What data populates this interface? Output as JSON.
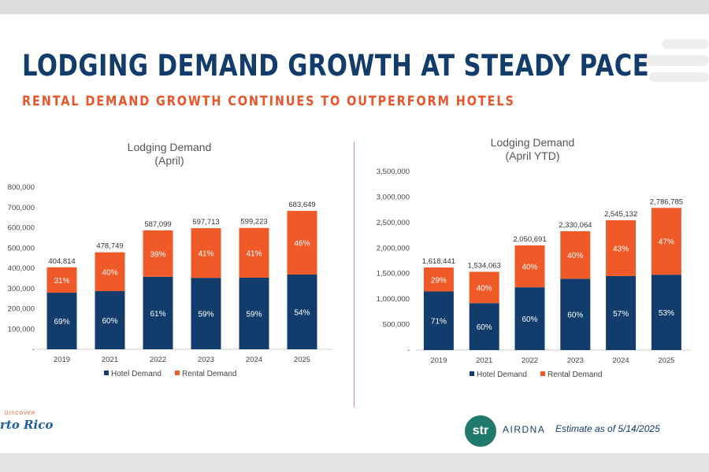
{
  "slide": {
    "title": "LODGING DEMAND GROWTH AT STEADY PACE",
    "subtitle": "RENTAL DEMAND GROWTH CONTINUES TO OUTPERFORM HOTELS",
    "estimate": "Estimate as of 5/14/2025",
    "logo_left_small": "DISCOVER",
    "logo_left_text": "rto Rico",
    "str_logo": "str",
    "airdna_logo": "AIRDNA"
  },
  "colors": {
    "hotel": "#123c6b",
    "rental": "#f05a28",
    "title": "#123c6b",
    "subtitle": "#e8552a"
  },
  "chart_data": [
    {
      "type": "bar",
      "stacked": true,
      "title": "Lodging Demand",
      "subtitle": "(April)",
      "categories": [
        "2019",
        "2021",
        "2022",
        "2023",
        "2024",
        "2025"
      ],
      "series": [
        {
          "name": "Hotel Demand",
          "values": [
            279322,
            287249,
            358130,
            352651,
            353542,
            369170
          ],
          "labels": [
            "69%",
            "60%",
            "61%",
            "59%",
            "59%",
            "54%"
          ]
        },
        {
          "name": "Rental Demand",
          "values": [
            125492,
            191500,
            228969,
            245062,
            245681,
            314479
          ],
          "labels": [
            "31%",
            "40%",
            "39%",
            "41%",
            "41%",
            "46%"
          ]
        }
      ],
      "totals": [
        "404,814",
        "478,749",
        "587,099",
        "597,713",
        "599,223",
        "683,649"
      ],
      "yticks": [
        "-",
        "100,000",
        "200,000",
        "300,000",
        "400,000",
        "500,000",
        "600,000",
        "700,000",
        "800,000"
      ],
      "ylim": [
        0,
        800000
      ],
      "legend": "bottom"
    },
    {
      "type": "bar",
      "stacked": true,
      "title": "Lodging Demand",
      "subtitle": "(April YTD)",
      "categories": [
        "2019",
        "2021",
        "2022",
        "2023",
        "2024",
        "2025"
      ],
      "series": [
        {
          "name": "Hotel Demand",
          "values": [
            1149093,
            920438,
            1230415,
            1398038,
            1450725,
            1477000
          ],
          "labels": [
            "71%",
            "60%",
            "60%",
            "60%",
            "57%",
            "53%"
          ]
        },
        {
          "name": "Rental Demand",
          "values": [
            469348,
            613625,
            820276,
            932026,
            1094407,
            1309785
          ],
          "labels": [
            "29%",
            "40%",
            "40%",
            "40%",
            "43%",
            "47%"
          ]
        }
      ],
      "totals": [
        "1,618,441",
        "1,534,063",
        "2,050,691",
        "2,330,064",
        "2,545,132",
        "2,786,785"
      ],
      "yticks": [
        "-",
        "500,000",
        "1,000,000",
        "1,500,000",
        "2,000,000",
        "2,500,000",
        "3,000,000",
        "3,500,000"
      ],
      "ylim": [
        0,
        3500000
      ],
      "legend": "bottom"
    }
  ]
}
